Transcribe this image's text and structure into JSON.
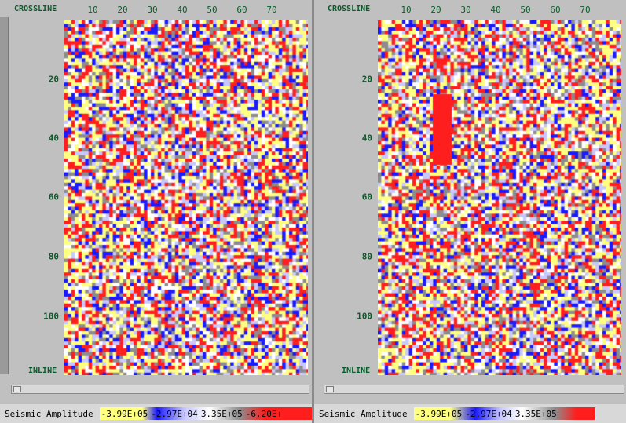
{
  "panels": [
    {
      "crossline_label": "CROSSLINE",
      "inline_label": "INLINE",
      "x_ticks": [
        "10",
        "20",
        "30",
        "40",
        "50",
        "60",
        "70"
      ],
      "y_ticks": [
        "20",
        "40",
        "60",
        "80",
        "100"
      ],
      "legend": {
        "title": "Seismic Amplitude",
        "values": [
          "-3.99E+05",
          "-2.97E+04",
          "3.35E+05",
          "-6.20E+"
        ]
      }
    },
    {
      "crossline_label": "CROSSLINE",
      "inline_label": "INLINE",
      "x_ticks": [
        "10",
        "20",
        "30",
        "40",
        "50",
        "60",
        "70"
      ],
      "y_ticks": [
        "20",
        "40",
        "60",
        "80",
        "100"
      ],
      "legend": {
        "title": "Seismic Amplitude",
        "values": [
          "-3.99E+05",
          "-2.97E+04",
          "3.35E+05"
        ]
      }
    }
  ],
  "colors": {
    "yellow": "#ffff80",
    "red": "#ff1e1e",
    "blue": "#1a1aff",
    "gray": "#8c8c8c",
    "white": "#ffffff",
    "lightblue": "#c8c8ff",
    "label_green": "#0a5a2a"
  },
  "icons": [
    "scroll-left-arrow-icon"
  ]
}
